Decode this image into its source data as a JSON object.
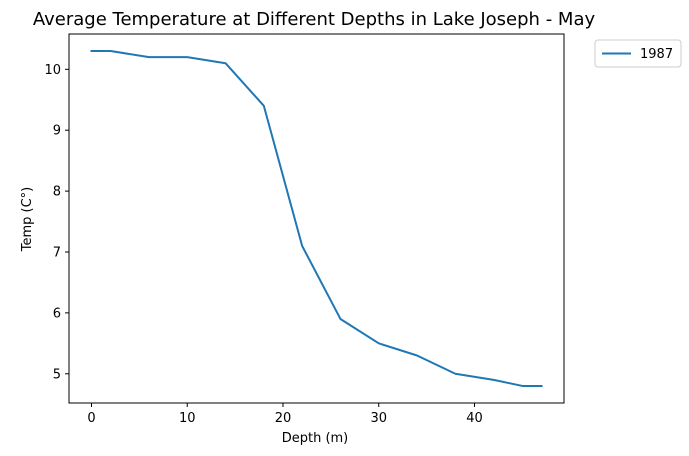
{
  "chart_data": {
    "type": "line",
    "title": "Average Temperature at Different Depths in Lake Joseph - May",
    "xlabel": "Depth (m)",
    "ylabel": "Temp (C°)",
    "xlim": [
      -2.35,
      49.35
    ],
    "ylim": [
      4.52,
      10.58
    ],
    "xticks": [
      0,
      10,
      20,
      30,
      40
    ],
    "yticks": [
      5,
      6,
      7,
      8,
      9,
      10
    ],
    "grid": false,
    "legend_position": "outside-top-right",
    "series": [
      {
        "name": "1987",
        "color": "#1f77b4",
        "x": [
          0,
          2,
          6,
          10,
          14,
          18,
          22,
          26,
          30,
          34,
          38,
          42,
          45,
          47
        ],
        "y": [
          10.3,
          10.3,
          10.2,
          10.2,
          10.1,
          9.4,
          7.1,
          5.9,
          5.5,
          5.3,
          5.0,
          4.9,
          4.8,
          4.8
        ]
      }
    ]
  }
}
